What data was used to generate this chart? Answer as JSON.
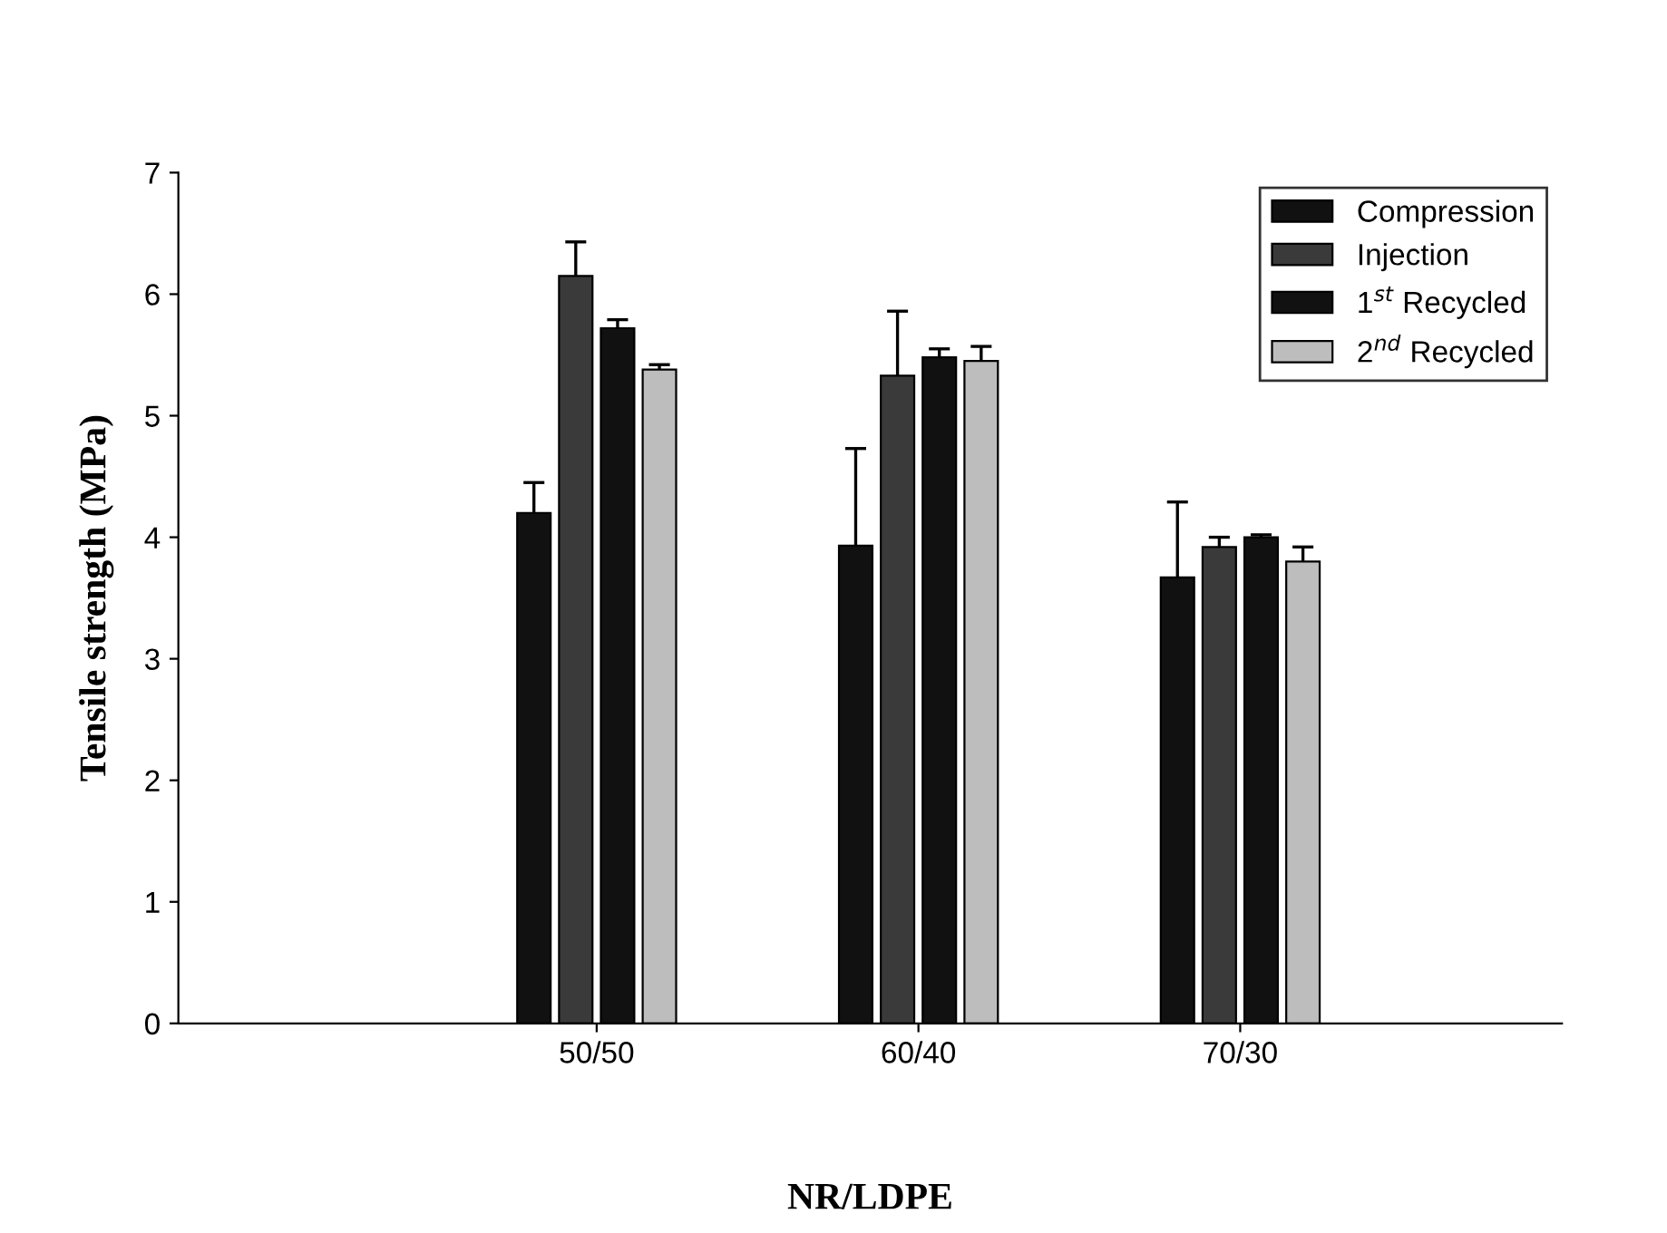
{
  "chart_data": {
    "type": "bar",
    "xlabel": "NR/LDPE",
    "ylabel": "Tensile strength (MPa)",
    "categories": [
      "50/50",
      "60/40",
      "70/30"
    ],
    "series": [
      {
        "name": "Compression",
        "color": "#111111",
        "values": [
          4.2,
          3.93,
          3.67
        ],
        "errors": [
          [
            4.2,
            4.45
          ],
          [
            3.93,
            4.73
          ],
          [
            3.67,
            4.29
          ]
        ]
      },
      {
        "name": "Injection",
        "color": "#3a3a3a",
        "values": [
          6.15,
          5.33,
          3.92
        ],
        "errors": [
          [
            6.15,
            6.43
          ],
          [
            5.33,
            5.86
          ],
          [
            3.92,
            4.0
          ]
        ]
      },
      {
        "name": "1$^{st}$ Recycled",
        "color": "#111111",
        "values": [
          5.72,
          5.48,
          4.0
        ],
        "errors": [
          [
            5.72,
            5.79
          ],
          [
            5.48,
            5.55
          ],
          [
            4.0,
            4.02
          ]
        ]
      },
      {
        "name": "2$^{nd}$ Recycled",
        "color": "#bdbdbd",
        "values": [
          5.38,
          5.45,
          3.8
        ],
        "errors": [
          [
            5.38,
            5.42
          ],
          [
            5.45,
            5.57
          ],
          [
            3.8,
            3.92
          ]
        ]
      }
    ],
    "ylim": [
      0,
      7
    ],
    "yticks": [
      0,
      1,
      2,
      3,
      4,
      5,
      6,
      7
    ],
    "grid": false,
    "legend": "top right"
  }
}
